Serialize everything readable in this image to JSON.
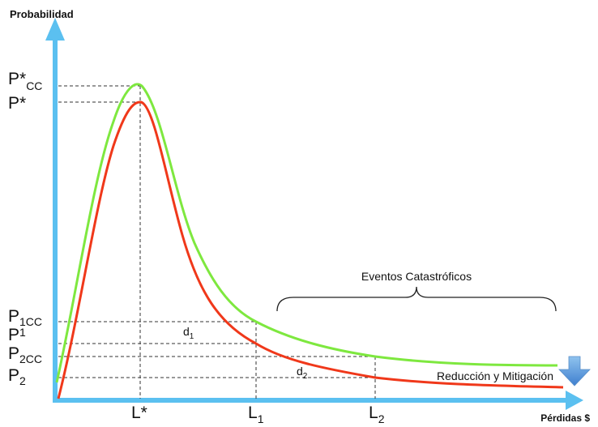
{
  "axes": {
    "y_label": "Probabilidad",
    "x_label": "Pérdidas $"
  },
  "y_ticks": {
    "p_cc": {
      "main": "P*",
      "sub": "CC"
    },
    "p_star": {
      "main": "P*",
      "sub": ""
    },
    "p1cc": {
      "main": "P",
      "sub": "1CC"
    },
    "p1": {
      "main": "P",
      "sub": "1"
    },
    "p2cc": {
      "main": "P",
      "sub": "2CC"
    },
    "p2": {
      "main": "P",
      "sub": "2"
    }
  },
  "x_ticks": {
    "l_star": {
      "main": "L*",
      "sub": ""
    },
    "l1": {
      "main": "L",
      "sub": "1"
    },
    "l2": {
      "main": "L",
      "sub": "2"
    }
  },
  "annotations": {
    "d1": {
      "main": "d",
      "sub": "1"
    },
    "d2": {
      "main": "d",
      "sub": "2"
    },
    "catastrophic": "Eventos Catastróficos",
    "reduction": "Reducción y Mitigación"
  },
  "curves": {
    "green": {
      "color": "#7ee83f"
    },
    "red": {
      "color": "#f0381a"
    }
  },
  "colors": {
    "axis": "#5bc0f0",
    "arrow": "#4a90d9",
    "guides": "#333333"
  }
}
